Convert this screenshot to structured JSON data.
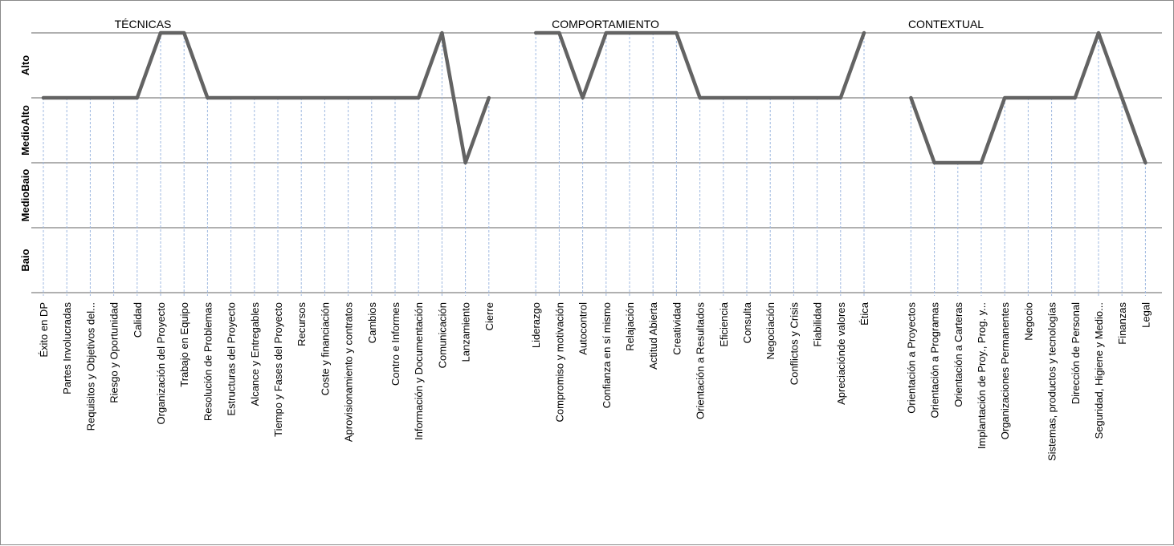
{
  "chart_data": {
    "type": "line",
    "sections": [
      "TÉCNICAS",
      "COMPORTAMIENTO",
      "CONTEXTUAL"
    ],
    "levels": [
      "Baio",
      "MedioBaio",
      "MedioAlto",
      "Alto"
    ],
    "categories": [
      "Éxito en DP",
      "Partes Involucradas",
      "Requisitos y  Objetivos del...",
      "Riesgo y Oportunidad",
      "Calidad",
      "Organización del Proyecto",
      "Trabajo en Equipo",
      "Resolución de Problemas",
      "Estructuras del Proyecto",
      "Alcance y Entregables",
      "Tiempo y Fases del Proyecto",
      "Recursos",
      "Coste y financiación",
      "Aprovisionamiento y contratos",
      "Cambios",
      "Contro e Informes",
      "Información y Documentación",
      "Comunicación",
      "Lanzamiento",
      "Cierre",
      "",
      "Liderazgo",
      "Compromiso y motivación",
      "Autocontrol",
      "Confianza en sí mismo",
      "Relajación",
      "Actitud Abierta",
      "Creatividad",
      "Orientación a Resultados",
      "Eficiencia",
      "Consulta",
      "Negociación",
      "Conflictos y Crisis",
      "Fiabilidad",
      "Apreciaciónde valores",
      "Ética",
      "",
      "Orientación a Proyectos",
      "Orientación a Programas",
      "Orientación a Carteras",
      "Implantación de Proy., Prog. y...",
      "Organizaciones Permanentes",
      "Negocio",
      "Sistemas, productos y tecnologías",
      "Dirección de Personal",
      "Seguridad, Higiene y Medio...",
      "Finanzas",
      "Legal"
    ],
    "series": [
      {
        "values": [
          3,
          3,
          3,
          3,
          3,
          4,
          4,
          3,
          3,
          3,
          3,
          3,
          3,
          3,
          3,
          3,
          3,
          4,
          2,
          3,
          null,
          4,
          4,
          3,
          4,
          4,
          4,
          4,
          3,
          3,
          3,
          3,
          3,
          3,
          3,
          4,
          null,
          3,
          2,
          2,
          2,
          3,
          3,
          3,
          3,
          4,
          3,
          2
        ]
      }
    ],
    "ylim": [
      0,
      4
    ],
    "grid": true,
    "colors": {
      "line": "#636363",
      "gridline": "#808080",
      "dropline": "#9fb8e0"
    }
  }
}
